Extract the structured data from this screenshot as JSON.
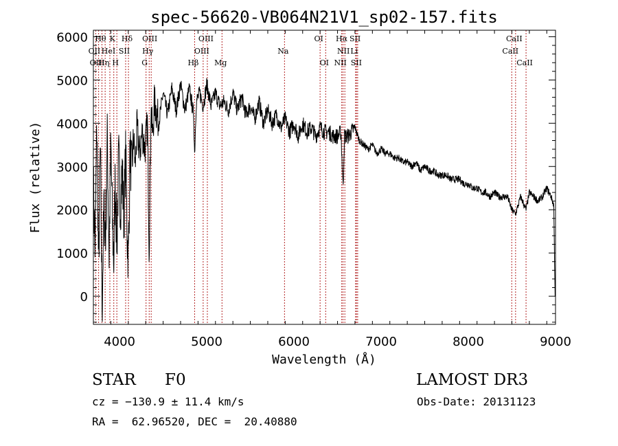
{
  "chart_data": {
    "type": "line",
    "title": "spec-56620-VB064N21V1_sp02-157.fits",
    "xlabel": "Wavelength (Å)",
    "ylabel": "Flux (relative)",
    "xlim": [
      3700,
      9000
    ],
    "ylim": [
      -650,
      6150
    ],
    "x_ticks": [
      4000,
      5000,
      6000,
      7000,
      8000,
      9000
    ],
    "y_ticks": [
      0,
      1000,
      2000,
      3000,
      4000,
      5000,
      6000
    ],
    "grid": false,
    "series": [
      {
        "name": "spectrum",
        "color": "#000000",
        "x": [
          3700,
          3720,
          3740,
          3760,
          3780,
          3800,
          3820,
          3840,
          3860,
          3880,
          3900,
          3920,
          3934,
          3950,
          3970,
          3990,
          4010,
          4030,
          4050,
          4070,
          4090,
          4102,
          4120,
          4140,
          4160,
          4180,
          4200,
          4230,
          4260,
          4290,
          4320,
          4340,
          4360,
          4380,
          4400,
          4450,
          4500,
          4550,
          4600,
          4650,
          4700,
          4750,
          4800,
          4850,
          4861,
          4880,
          4920,
          4960,
          5000,
          5050,
          5100,
          5150,
          5200,
          5250,
          5300,
          5350,
          5400,
          5450,
          5500,
          5550,
          5600,
          5650,
          5700,
          5750,
          5800,
          5850,
          5900,
          5950,
          6000,
          6050,
          6100,
          6150,
          6200,
          6250,
          6300,
          6350,
          6400,
          6450,
          6500,
          6540,
          6563,
          6580,
          6620,
          6660,
          6700,
          6750,
          6800,
          6850,
          6900,
          6950,
          7000,
          7050,
          7100,
          7150,
          7200,
          7250,
          7300,
          7350,
          7400,
          7450,
          7500,
          7550,
          7600,
          7650,
          7700,
          7750,
          7800,
          7850,
          7900,
          7950,
          8000,
          8050,
          8100,
          8150,
          8200,
          8250,
          8300,
          8350,
          8400,
          8450,
          8498,
          8542,
          8600,
          8662,
          8700,
          8750,
          8800,
          8850,
          8900,
          8950,
          8980,
          8995
        ],
        "y": [
          2600,
          1000,
          4100,
          600,
          3500,
          -300,
          2000,
          1400,
          3700,
          900,
          3500,
          1600,
          800,
          2700,
          1200,
          3200,
          2100,
          2900,
          1800,
          3300,
          1300,
          900,
          3400,
          2800,
          3700,
          3000,
          3900,
          3300,
          3800,
          3400,
          4000,
          1000,
          4300,
          3700,
          4500,
          4000,
          4700,
          4200,
          4800,
          4300,
          4900,
          4300,
          4800,
          4200,
          3300,
          4500,
          4700,
          4400,
          4900,
          4400,
          4700,
          4400,
          4500,
          4300,
          4700,
          4300,
          4600,
          4200,
          4400,
          4100,
          4500,
          4000,
          4300,
          4000,
          4200,
          3900,
          4100,
          3800,
          4000,
          3700,
          4000,
          3800,
          3900,
          3700,
          3900,
          3800,
          3800,
          3700,
          3700,
          3800,
          2500,
          3700,
          3700,
          3800,
          3900,
          3600,
          3500,
          3400,
          3500,
          3300,
          3400,
          3300,
          3300,
          3200,
          3200,
          3100,
          3100,
          3000,
          3100,
          2900,
          3000,
          2900,
          2900,
          2800,
          2800,
          2800,
          2700,
          2700,
          2700,
          2600,
          2600,
          2500,
          2500,
          2400,
          2400,
          2300,
          2400,
          2300,
          2300,
          2300,
          2000,
          1900,
          2300,
          2000,
          2400,
          2300,
          2200,
          2300,
          2500,
          2300,
          2100,
          0
        ]
      }
    ],
    "lines": [
      {
        "label": "H&#952;",
        "x": 3798,
        "row": 1
      },
      {
        "label": "K",
        "x": 3934,
        "row": 1
      },
      {
        "label": "H&#948;",
        "x": 4102,
        "row": 1
      },
      {
        "label": "OIII",
        "x": 4363,
        "row": 1
      },
      {
        "label": "OIII",
        "x": 5007,
        "row": 1
      },
      {
        "label": "OI",
        "x": 6300,
        "row": 1
      },
      {
        "label": "H&#945;",
        "x": 6563,
        "row": 1
      },
      {
        "label": "SII",
        "x": 6717,
        "row": 1
      },
      {
        "label": "CaII",
        "x": 8542,
        "row": 1
      },
      {
        "label": "OII",
        "x": 3727,
        "row": 2
      },
      {
        "label": "HeI",
        "x": 3889,
        "row": 2
      },
      {
        "label": "SII",
        "x": 4070,
        "row": 2
      },
      {
        "label": "H&#947;",
        "x": 4340,
        "row": 2
      },
      {
        "label": "OIII",
        "x": 4959,
        "row": 2
      },
      {
        "label": "Na",
        "x": 5892,
        "row": 2
      },
      {
        "label": "NII",
        "x": 6584,
        "row": 2
      },
      {
        "label": "Li",
        "x": 6707,
        "row": 2
      },
      {
        "label": "CaII",
        "x": 8498,
        "row": 2
      },
      {
        "label": "OIII",
        "x": 3760,
        "row": 3
      },
      {
        "label": "H&#951;",
        "x": 3835,
        "row": 3
      },
      {
        "label": "H",
        "x": 3969,
        "row": 3
      },
      {
        "label": "G",
        "x": 4304,
        "row": 3
      },
      {
        "label": "H&#946;",
        "x": 4861,
        "row": 3
      },
      {
        "label": "Mg",
        "x": 5175,
        "row": 3
      },
      {
        "label": "OI",
        "x": 6364,
        "row": 3
      },
      {
        "label": "NII",
        "x": 6548,
        "row": 3
      },
      {
        "label": "SII",
        "x": 6731,
        "row": 3
      },
      {
        "label": "CaII",
        "x": 8662,
        "row": 3
      }
    ]
  },
  "info": {
    "object_class": "STAR",
    "subclass": "F0",
    "survey": "LAMOST DR3",
    "cz": "cz = −130.9 ± 11.4 km/s",
    "obs_date": "Obs-Date: 20131123",
    "coords": "RA =  62.96520, DEC =  20.40880"
  },
  "colors": {
    "axis": "#000000",
    "line_marker": "#b22222"
  }
}
